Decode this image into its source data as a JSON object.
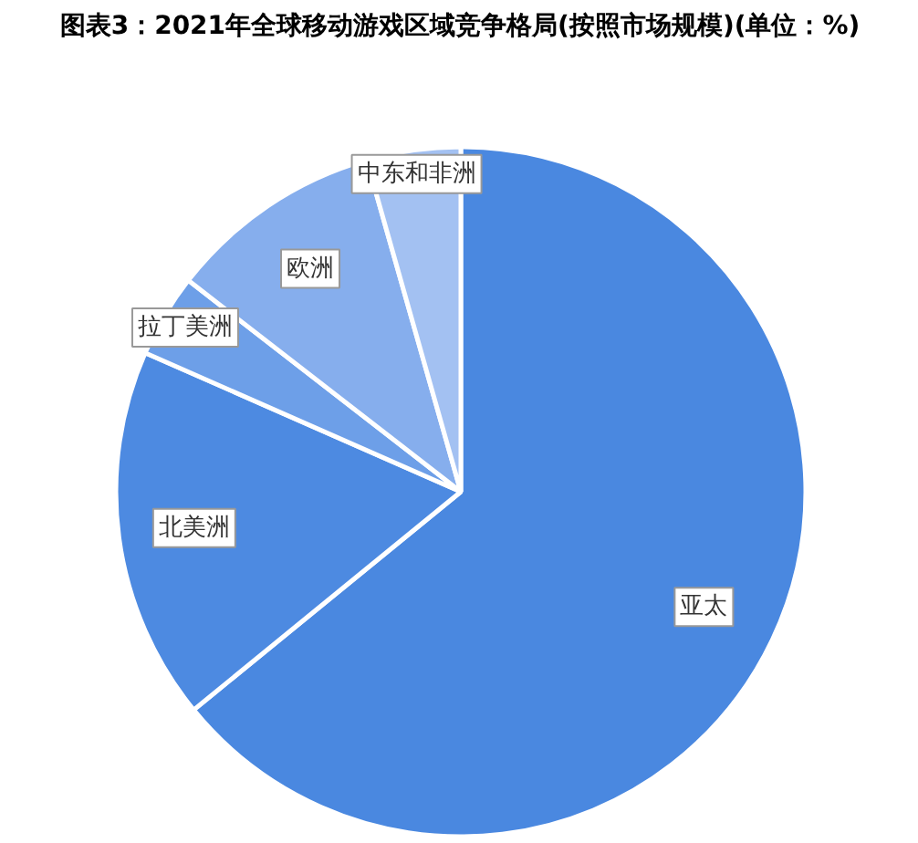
{
  "chart_data": {
    "type": "pie",
    "title": "图表3：2021年全球移动游戏区域竞争格局(按照市场规模)(单位：%)",
    "categories": [
      "亚太",
      "北美洲",
      "拉丁美洲",
      "欧洲",
      "中东和非洲"
    ],
    "values": [
      64.1,
      17.5,
      3.9,
      10.1,
      4.4
    ],
    "colors": [
      "#4a88e0",
      "#4d8ae1",
      "#6d9fe8",
      "#86aeed",
      "#a3c1f2"
    ]
  }
}
